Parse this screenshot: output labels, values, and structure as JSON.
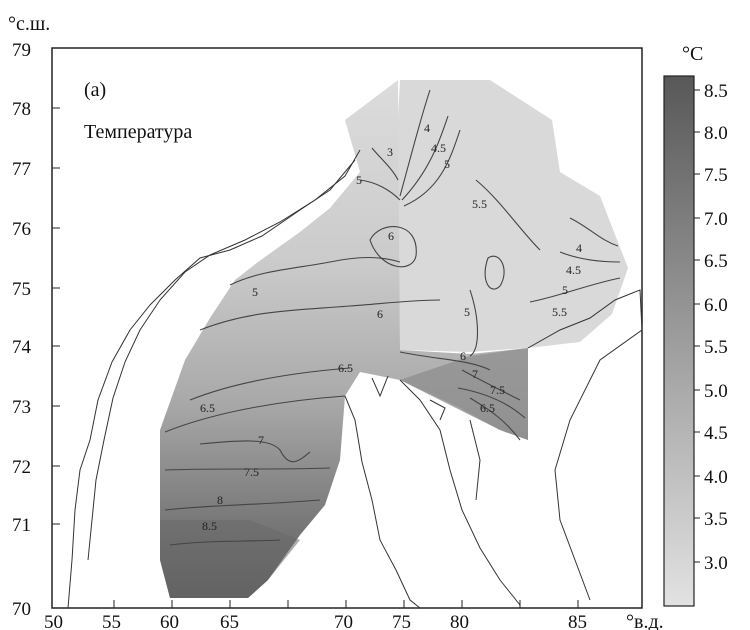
{
  "panel_label": "(a)",
  "variable_label": "Температура",
  "axes": {
    "lat_unit": "°с.ш.",
    "lon_unit": "°в.д.",
    "lat_ticks": [
      "79",
      "78",
      "77",
      "76",
      "75",
      "74",
      "73",
      "72",
      "71",
      "70"
    ],
    "lon_ticks": [
      "50",
      "55",
      "60",
      "65",
      "70",
      "75",
      "80",
      "85"
    ]
  },
  "colorbar": {
    "unit": "°C",
    "ticks": [
      "8.5",
      "8.0",
      "7.5",
      "7.0",
      "6.5",
      "6.0",
      "5.5",
      "5.0",
      "4.5",
      "4.0",
      "3.5",
      "3.0"
    ],
    "color_min": "#e2e2e2",
    "color_max": "#585858"
  },
  "isolines": [
    "3",
    "4",
    "4.5",
    "5",
    "5.5",
    "5",
    "6",
    "5",
    "6",
    "5",
    "5.5",
    "5",
    "4.5",
    "4",
    "6.5",
    "6",
    "6.5",
    "7",
    "7.5",
    "6.5",
    "7",
    "7.5",
    "8",
    "8.5"
  ],
  "chart_data": {
    "type": "heatmap",
    "title": "Температура",
    "xlabel": "°в.д.",
    "ylabel": "°с.ш.",
    "xlim": [
      50,
      88
    ],
    "ylim": [
      70,
      79
    ],
    "value_range": [
      3.0,
      8.5
    ],
    "unit": "°C",
    "contour_levels": [
      3,
      4,
      4.5,
      5,
      5.5,
      6,
      6.5,
      7,
      7.5,
      8,
      8.5
    ]
  }
}
